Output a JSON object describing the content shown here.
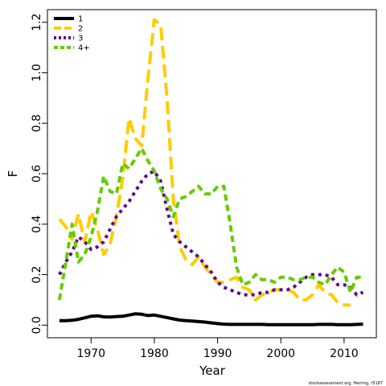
{
  "chart_data": {
    "type": "line",
    "xlabel": "Year",
    "ylabel": "F",
    "xlim": [
      1963.1,
      2015.1
    ],
    "ylim": [
      -0.05,
      1.25
    ],
    "x_ticks": [
      1970,
      1980,
      1990,
      2000,
      2010
    ],
    "y_ticks": [
      0.0,
      0.2,
      0.4,
      0.6,
      0.8,
      1.0,
      1.2
    ],
    "y_tick_labels": [
      "0.0",
      "0.2",
      "0.4",
      "0.6",
      "0.8",
      "1.0",
      "1.2"
    ],
    "legend_position": "top-left",
    "grid": false,
    "credit": "stockassessment.org, Herring, r5187",
    "series": [
      {
        "name": "1",
        "color": "#000000",
        "dash": "solid",
        "x": [
          1965,
          1966,
          1967,
          1968,
          1969,
          1970,
          1971,
          1972,
          1973,
          1974,
          1975,
          1976,
          1977,
          1978,
          1979,
          1980,
          1981,
          1982,
          1983,
          1984,
          1985,
          1986,
          1987,
          1988,
          1989,
          1990,
          1991,
          1992,
          1993,
          1994,
          1995,
          1996,
          1997,
          1998,
          1999,
          2000,
          2001,
          2002,
          2003,
          2004,
          2005,
          2006,
          2007,
          2008,
          2009,
          2010,
          2011,
          2012,
          2013
        ],
        "y": [
          0.018,
          0.018,
          0.019,
          0.023,
          0.029,
          0.035,
          0.037,
          0.033,
          0.032,
          0.034,
          0.035,
          0.04,
          0.045,
          0.043,
          0.038,
          0.04,
          0.035,
          0.03,
          0.025,
          0.02,
          0.018,
          0.016,
          0.014,
          0.012,
          0.009,
          0.006,
          0.004,
          0.003,
          0.003,
          0.003,
          0.003,
          0.003,
          0.003,
          0.002,
          0.002,
          0.002,
          0.002,
          0.002,
          0.002,
          0.002,
          0.002,
          0.003,
          0.003,
          0.003,
          0.002,
          0.002,
          0.002,
          0.003,
          0.004
        ]
      },
      {
        "name": "2",
        "color": "#FFCC00",
        "dash": "long",
        "x": [
          1965,
          1966,
          1967,
          1968,
          1969,
          1970,
          1971,
          1972,
          1973,
          1974,
          1975,
          1976,
          1977,
          1978,
          1979,
          1980,
          1981,
          1982,
          1983,
          1984,
          1985,
          1986,
          1987,
          1988,
          1989,
          1990,
          1991,
          1992,
          1993,
          1994,
          1995,
          1996,
          1997,
          1998,
          1999,
          2000,
          2001,
          2002,
          2003,
          2004,
          2005,
          2006,
          2007,
          2008,
          2009,
          2010,
          2011,
          2012,
          2013
        ],
        "y": [
          0.42,
          0.39,
          0.34,
          0.44,
          0.33,
          0.45,
          0.38,
          0.28,
          0.32,
          0.43,
          0.58,
          0.82,
          0.74,
          0.71,
          0.98,
          1.21,
          1.19,
          0.9,
          0.5,
          0.31,
          0.26,
          0.24,
          0.27,
          0.23,
          0.2,
          0.17,
          0.17,
          0.18,
          0.19,
          0.15,
          0.14,
          0.1,
          0.12,
          0.13,
          0.14,
          0.14,
          0.14,
          0.13,
          0.1,
          0.1,
          0.12,
          0.16,
          0.13,
          0.12,
          0.09,
          0.08,
          0.08,
          null,
          null
        ]
      },
      {
        "name": "3",
        "color": "#5B0C8C",
        "dash": "dot",
        "x": [
          1965,
          1966,
          1967,
          1968,
          1969,
          1970,
          1971,
          1972,
          1973,
          1974,
          1975,
          1976,
          1977,
          1978,
          1979,
          1980,
          1981,
          1982,
          1983,
          1984,
          1985,
          1986,
          1987,
          1988,
          1989,
          1990,
          1991,
          1992,
          1993,
          1994,
          1995,
          1996,
          1997,
          1998,
          1999,
          2000,
          2001,
          2002,
          2003,
          2004,
          2005,
          2006,
          2007,
          2008,
          2009,
          2010,
          2011,
          2012,
          2013
        ],
        "y": [
          0.2,
          0.25,
          0.29,
          0.35,
          0.33,
          0.3,
          0.31,
          0.33,
          0.38,
          0.43,
          0.46,
          0.49,
          0.53,
          0.57,
          0.6,
          0.61,
          0.57,
          0.46,
          0.36,
          0.33,
          0.31,
          0.29,
          0.27,
          0.24,
          0.21,
          0.17,
          0.15,
          0.14,
          0.13,
          0.12,
          0.12,
          0.12,
          0.13,
          0.13,
          0.14,
          0.14,
          0.14,
          0.15,
          0.17,
          0.19,
          0.2,
          0.2,
          0.2,
          0.19,
          0.16,
          0.16,
          0.15,
          0.12,
          0.13
        ]
      },
      {
        "name": "4+",
        "color": "#66CC00",
        "dash": "short",
        "x": [
          1965,
          1966,
          1967,
          1968,
          1969,
          1970,
          1971,
          1972,
          1973,
          1974,
          1975,
          1976,
          1977,
          1978,
          1979,
          1980,
          1981,
          1982,
          1983,
          1984,
          1985,
          1986,
          1987,
          1988,
          1989,
          1990,
          1991,
          1992,
          1993,
          1994,
          1995,
          1996,
          1997,
          1998,
          1999,
          2000,
          2001,
          2002,
          2003,
          2004,
          2005,
          2006,
          2007,
          2008,
          2009,
          2010,
          2011,
          2012,
          2013
        ],
        "y": [
          0.1,
          0.25,
          0.4,
          0.25,
          0.28,
          0.35,
          0.45,
          0.59,
          0.53,
          0.52,
          0.64,
          0.62,
          0.66,
          0.7,
          0.65,
          0.61,
          0.54,
          0.5,
          0.43,
          0.5,
          0.51,
          0.53,
          0.55,
          0.52,
          0.52,
          0.55,
          0.55,
          0.4,
          0.23,
          0.16,
          0.17,
          0.2,
          0.18,
          0.18,
          0.17,
          0.19,
          0.19,
          0.18,
          0.18,
          0.19,
          0.19,
          0.17,
          0.16,
          0.2,
          0.23,
          0.21,
          0.13,
          0.19,
          0.19
        ]
      }
    ]
  }
}
